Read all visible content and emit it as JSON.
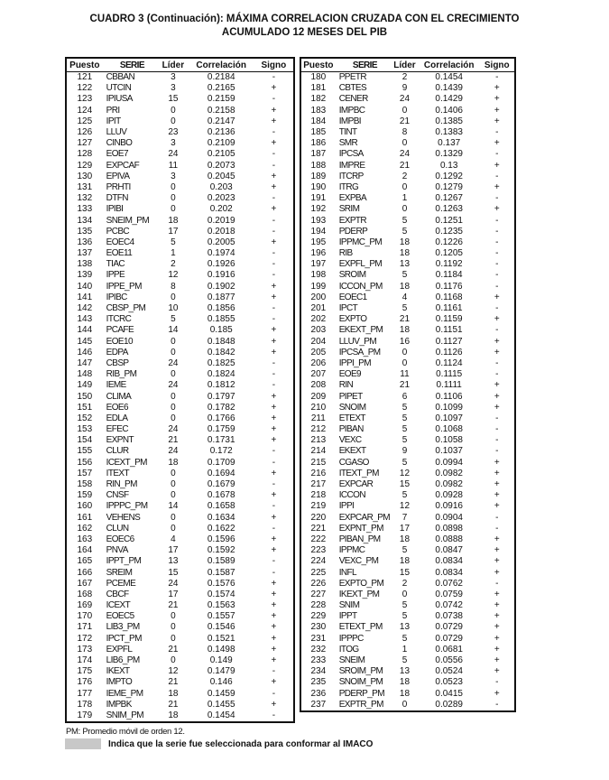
{
  "title_line1": "CUADRO 3 (Continuación): MÁXIMA CORRELACION CRUZADA CON EL CRECIMIENTO",
  "title_line2": "ACUMULADO 12 MESES DEL PIB",
  "columns": [
    "Puesto",
    "SERIE",
    "Líder",
    "Correlación",
    "Signo"
  ],
  "left_rows": [
    [
      "121",
      "CBBAN",
      "3",
      "0.2184",
      "-"
    ],
    [
      "122",
      "UTCIN",
      "3",
      "0.2165",
      "+"
    ],
    [
      "123",
      "IPIUSA",
      "15",
      "0.2159",
      "-"
    ],
    [
      "124",
      "PRI",
      "0",
      "0.2158",
      "+"
    ],
    [
      "125",
      "IPIT",
      "0",
      "0.2147",
      "+"
    ],
    [
      "126",
      "LLUV",
      "23",
      "0.2136",
      "-"
    ],
    [
      "127",
      "CINBO",
      "3",
      "0.2109",
      "+"
    ],
    [
      "128",
      "EOE7",
      "24",
      "0.2105",
      "-"
    ],
    [
      "129",
      "EXPCAF",
      "11",
      "0.2073",
      "-"
    ],
    [
      "130",
      "EPIVA",
      "3",
      "0.2045",
      "+"
    ],
    [
      "131",
      "PRHTI",
      "0",
      "0.203",
      "+"
    ],
    [
      "132",
      "DTFN",
      "0",
      "0.2023",
      "-"
    ],
    [
      "133",
      "IPIBI",
      "0",
      "0.202",
      "+"
    ],
    [
      "134",
      "SNEIM_PM",
      "18",
      "0.2019",
      "-"
    ],
    [
      "135",
      "PCBC",
      "17",
      "0.2018",
      "-"
    ],
    [
      "136",
      "EOEC4",
      "5",
      "0.2005",
      "+"
    ],
    [
      "137",
      "EOE11",
      "1",
      "0.1974",
      "-"
    ],
    [
      "138",
      "TIAC",
      "2",
      "0.1926",
      "-"
    ],
    [
      "139",
      "IPPE",
      "12",
      "0.1916",
      "-"
    ],
    [
      "140",
      "IPPE_PM",
      "8",
      "0.1902",
      "+"
    ],
    [
      "141",
      "IPIBC",
      "0",
      "0.1877",
      "+"
    ],
    [
      "142",
      "CBSP_PM",
      "10",
      "0.1856",
      "-"
    ],
    [
      "143",
      "ITCRC",
      "5",
      "0.1855",
      "-"
    ],
    [
      "144",
      "PCAFE",
      "14",
      "0.185",
      "+"
    ],
    [
      "145",
      "EOE10",
      "0",
      "0.1848",
      "+"
    ],
    [
      "146",
      "EDPA",
      "0",
      "0.1842",
      "+"
    ],
    [
      "147",
      "CBSP",
      "24",
      "0.1825",
      "-"
    ],
    [
      "148",
      "RIB_PM",
      "0",
      "0.1824",
      "-"
    ],
    [
      "149",
      "IEME",
      "24",
      "0.1812",
      "-"
    ],
    [
      "150",
      "CLIMA",
      "0",
      "0.1797",
      "+"
    ],
    [
      "151",
      "EOE6",
      "0",
      "0.1782",
      "+"
    ],
    [
      "152",
      "EDLA",
      "0",
      "0.1766",
      "+"
    ],
    [
      "153",
      "EFEC",
      "24",
      "0.1759",
      "+"
    ],
    [
      "154",
      "EXPNT",
      "21",
      "0.1731",
      "+"
    ],
    [
      "155",
      "CLUR",
      "24",
      "0.172",
      "-"
    ],
    [
      "156",
      "ICEXT_PM",
      "18",
      "0.1709",
      "-"
    ],
    [
      "157",
      "ITEXT",
      "0",
      "0.1694",
      "+"
    ],
    [
      "158",
      "RIN_PM",
      "0",
      "0.1679",
      "-"
    ],
    [
      "159",
      "CNSF",
      "0",
      "0.1678",
      "+"
    ],
    [
      "160",
      "IPPPC_PM",
      "14",
      "0.1658",
      "-"
    ],
    [
      "161",
      "VEHENS",
      "0",
      "0.1634",
      "+"
    ],
    [
      "162",
      "CLUN",
      "0",
      "0.1622",
      "-"
    ],
    [
      "163",
      "EOEC6",
      "4",
      "0.1596",
      "+"
    ],
    [
      "164",
      "PNVA",
      "17",
      "0.1592",
      "+"
    ],
    [
      "165",
      "IPPT_PM",
      "13",
      "0.1589",
      "-"
    ],
    [
      "166",
      "SREIM",
      "15",
      "0.1587",
      "-"
    ],
    [
      "167",
      "PCEME",
      "24",
      "0.1576",
      "+"
    ],
    [
      "168",
      "CBCF",
      "17",
      "0.1574",
      "+"
    ],
    [
      "169",
      "ICEXT",
      "21",
      "0.1563",
      "+"
    ],
    [
      "170",
      "EOEC5",
      "0",
      "0.1557",
      "+"
    ],
    [
      "171",
      "LIB3_PM",
      "0",
      "0.1546",
      "+"
    ],
    [
      "172",
      "IPCT_PM",
      "0",
      "0.1521",
      "+"
    ],
    [
      "173",
      "EXPFL",
      "21",
      "0.1498",
      "+"
    ],
    [
      "174",
      "LIB6_PM",
      "0",
      "0.149",
      "+"
    ],
    [
      "175",
      "IKEXT",
      "12",
      "0.1479",
      "-"
    ],
    [
      "176",
      "IMPTO",
      "21",
      "0.146",
      "+"
    ],
    [
      "177",
      "IEME_PM",
      "18",
      "0.1459",
      "-"
    ],
    [
      "178",
      "IMPBK",
      "21",
      "0.1455",
      "+"
    ],
    [
      "179",
      "SNIM_PM",
      "18",
      "0.1454",
      "-"
    ]
  ],
  "right_rows": [
    [
      "180",
      "PPETR",
      "2",
      "0.1454",
      "-"
    ],
    [
      "181",
      "CBTES",
      "9",
      "0.1439",
      "+"
    ],
    [
      "182",
      "CENER",
      "24",
      "0.1429",
      "+"
    ],
    [
      "183",
      "IMPBC",
      "0",
      "0.1406",
      "+"
    ],
    [
      "184",
      "IMPBI",
      "21",
      "0.1385",
      "+"
    ],
    [
      "185",
      "TINT",
      "8",
      "0.1383",
      "-"
    ],
    [
      "186",
      "SMR",
      "0",
      "0.137",
      "+"
    ],
    [
      "187",
      "IPCSA",
      "24",
      "0.1329",
      "-"
    ],
    [
      "188",
      "IMPRE",
      "21",
      "0.13",
      "+"
    ],
    [
      "189",
      "ITCRP",
      "2",
      "0.1292",
      "-"
    ],
    [
      "190",
      "ITRG",
      "0",
      "0.1279",
      "+"
    ],
    [
      "191",
      "EXPBA",
      "1",
      "0.1267",
      "-"
    ],
    [
      "192",
      "SRIM",
      "0",
      "0.1263",
      "+"
    ],
    [
      "193",
      "EXPTR",
      "5",
      "0.1251",
      "-"
    ],
    [
      "194",
      "PDERP",
      "5",
      "0.1235",
      "-"
    ],
    [
      "195",
      "IPPMC_PM",
      "18",
      "0.1226",
      "-"
    ],
    [
      "196",
      "RIB",
      "18",
      "0.1205",
      "-"
    ],
    [
      "197",
      "EXPFL_PM",
      "13",
      "0.1192",
      "-"
    ],
    [
      "198",
      "SROIM",
      "5",
      "0.1184",
      "-"
    ],
    [
      "199",
      "ICCON_PM",
      "18",
      "0.1176",
      "-"
    ],
    [
      "200",
      "EOEC1",
      "4",
      "0.1168",
      "+"
    ],
    [
      "201",
      "IPCT",
      "5",
      "0.1161",
      "-"
    ],
    [
      "202",
      "EXPTO",
      "21",
      "0.1159",
      "+"
    ],
    [
      "203",
      "EKEXT_PM",
      "18",
      "0.1151",
      "-"
    ],
    [
      "204",
      "LLUV_PM",
      "16",
      "0.1127",
      "+"
    ],
    [
      "205",
      "IPCSA_PM",
      "0",
      "0.1126",
      "+"
    ],
    [
      "206",
      "IPPI_PM",
      "0",
      "0.1124",
      "-"
    ],
    [
      "207",
      "EOE9",
      "11",
      "0.1115",
      "-"
    ],
    [
      "208",
      "RIN",
      "21",
      "0.1111",
      "+"
    ],
    [
      "209",
      "PIPET",
      "6",
      "0.1106",
      "+"
    ],
    [
      "210",
      "SNOIM",
      "5",
      "0.1099",
      "+"
    ],
    [
      "211",
      "ETEXT",
      "5",
      "0.1097",
      "-"
    ],
    [
      "212",
      "PIBAN",
      "5",
      "0.1068",
      "-"
    ],
    [
      "213",
      "VEXC",
      "5",
      "0.1058",
      "-"
    ],
    [
      "214",
      "EKEXT",
      "9",
      "0.1037",
      "-"
    ],
    [
      "215",
      "CGASO",
      "5",
      "0.0994",
      "+"
    ],
    [
      "216",
      "ITEXT_PM",
      "12",
      "0.0982",
      "+"
    ],
    [
      "217",
      "EXPCAR",
      "15",
      "0.0982",
      "+"
    ],
    [
      "218",
      "ICCON",
      "5",
      "0.0928",
      "+"
    ],
    [
      "219",
      "IPPI",
      "12",
      "0.0916",
      "+"
    ],
    [
      "220",
      "EXPCAR_PM",
      "7",
      "0.0904",
      "-"
    ],
    [
      "221",
      "EXPNT_PM",
      "17",
      "0.0898",
      "-"
    ],
    [
      "222",
      "PIBAN_PM",
      "18",
      "0.0888",
      "+"
    ],
    [
      "223",
      "IPPMC",
      "5",
      "0.0847",
      "+"
    ],
    [
      "224",
      "VEXC_PM",
      "18",
      "0.0834",
      "+"
    ],
    [
      "225",
      "INFL",
      "15",
      "0.0834",
      "+"
    ],
    [
      "226",
      "EXPTO_PM",
      "2",
      "0.0762",
      "-"
    ],
    [
      "227",
      "IKEXT_PM",
      "0",
      "0.0759",
      "+"
    ],
    [
      "228",
      "SNIM",
      "5",
      "0.0742",
      "+"
    ],
    [
      "229",
      "IPPT",
      "5",
      "0.0738",
      "+"
    ],
    [
      "230",
      "ETEXT_PM",
      "13",
      "0.0729",
      "+"
    ],
    [
      "231",
      "IPPPC",
      "5",
      "0.0729",
      "+"
    ],
    [
      "232",
      "ITOG",
      "1",
      "0.0681",
      "+"
    ],
    [
      "233",
      "SNEIM",
      "5",
      "0.0556",
      "+"
    ],
    [
      "234",
      "SROIM_PM",
      "13",
      "0.0524",
      "+"
    ],
    [
      "235",
      "SNOIM_PM",
      "18",
      "0.0523",
      "-"
    ],
    [
      "236",
      "PDERP_PM",
      "18",
      "0.0415",
      "+"
    ],
    [
      "237",
      "EXPTR_PM",
      "0",
      "0.0289",
      "-"
    ]
  ],
  "footnote": "PM: Promedio móvil de orden 12.",
  "legend_text": "Indica que la serie fue seleccionada para conformar al IMACO",
  "legend_color": "#c8c8c8"
}
